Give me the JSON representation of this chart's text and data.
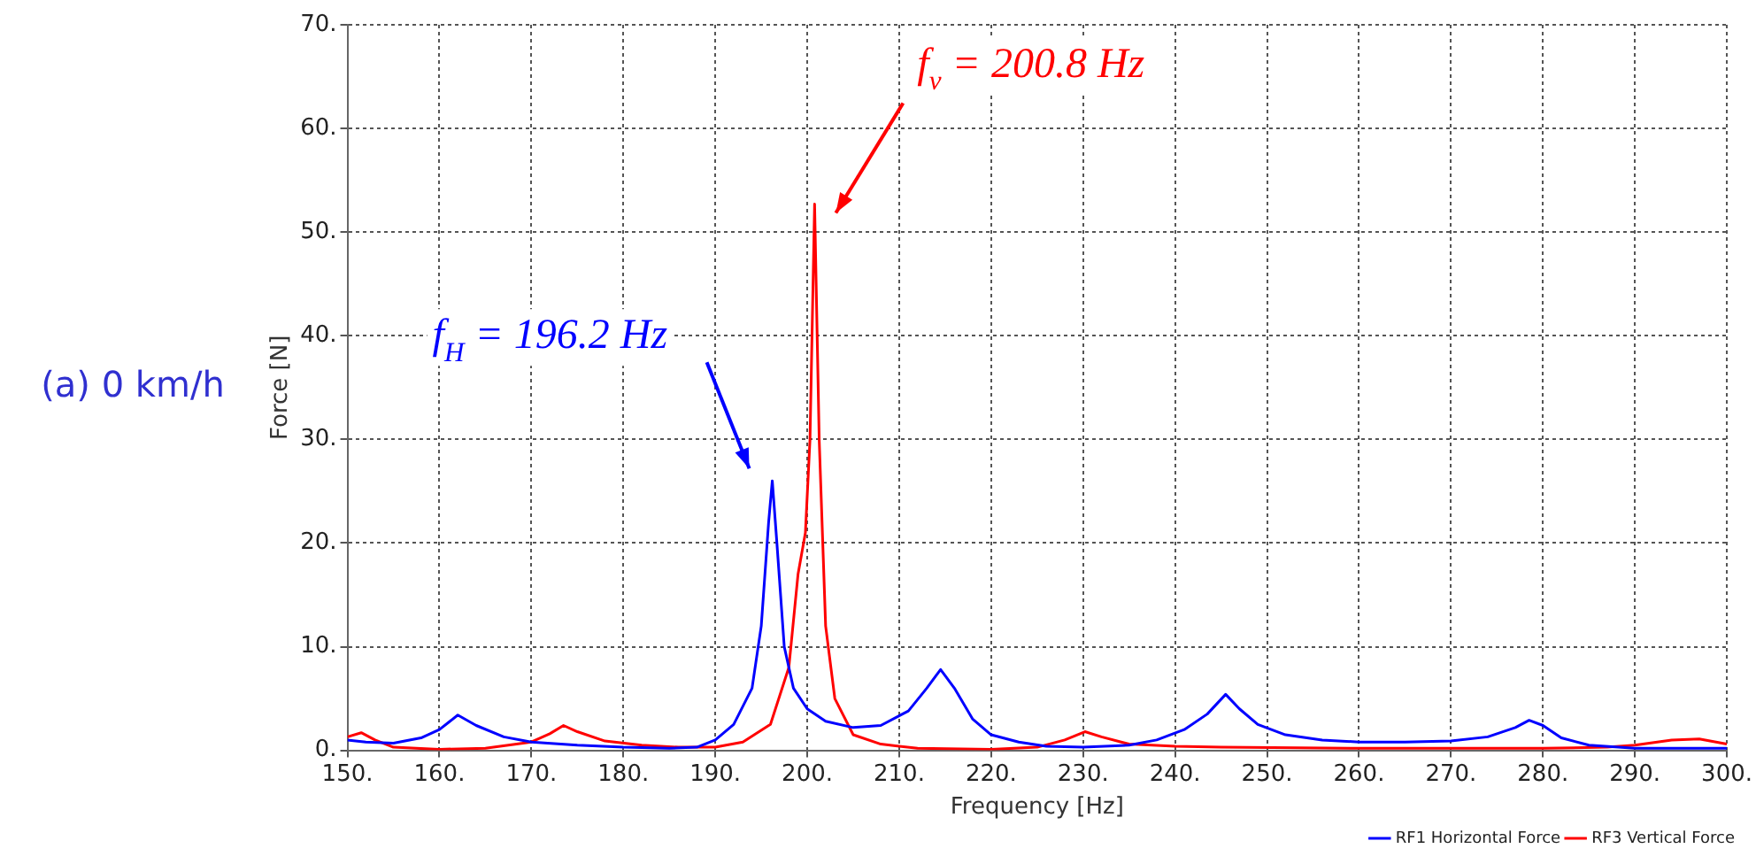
{
  "chart_data": {
    "type": "line",
    "xlabel": "Frequency [Hz]",
    "ylabel": "Force [N]",
    "xlim": [
      150,
      300
    ],
    "ylim": [
      0,
      70
    ],
    "xticks": [
      {
        "value": 150,
        "label": "150."
      },
      {
        "value": 160,
        "label": "160."
      },
      {
        "value": 170,
        "label": "170."
      },
      {
        "value": 180,
        "label": "180."
      },
      {
        "value": 190,
        "label": "190."
      },
      {
        "value": 200,
        "label": "200."
      },
      {
        "value": 210,
        "label": "210."
      },
      {
        "value": 220,
        "label": "220."
      },
      {
        "value": 230,
        "label": "230."
      },
      {
        "value": 240,
        "label": "240."
      },
      {
        "value": 250,
        "label": "250."
      },
      {
        "value": 260,
        "label": "260."
      },
      {
        "value": 270,
        "label": "270."
      },
      {
        "value": 280,
        "label": "280."
      },
      {
        "value": 290,
        "label": "290."
      },
      {
        "value": 300,
        "label": "300."
      }
    ],
    "yticks": [
      {
        "value": 0,
        "label": "0."
      },
      {
        "value": 10,
        "label": "10."
      },
      {
        "value": 20,
        "label": "20."
      },
      {
        "value": 30,
        "label": "30."
      },
      {
        "value": 40,
        "label": "40."
      },
      {
        "value": 50,
        "label": "50."
      },
      {
        "value": 60,
        "label": "60."
      },
      {
        "value": 70,
        "label": "70."
      }
    ],
    "grid": true,
    "legend": "bottom right",
    "marker": "none",
    "line_style": "solid",
    "series": [
      {
        "name": "RF1 Horizontal Force",
        "color": "#0000ff",
        "x": [
          150,
          152,
          155,
          158,
          160,
          162,
          164,
          167,
          170,
          175,
          180,
          185,
          188,
          190,
          192,
          194,
          195,
          195.8,
          196.2,
          196.7,
          197.5,
          198.5,
          200,
          202,
          205,
          208,
          211,
          213,
          214.5,
          216,
          218,
          220,
          223,
          226,
          230,
          235,
          238,
          241,
          243.5,
          245.5,
          247,
          249,
          252,
          256,
          260,
          265,
          270,
          274,
          277,
          278.5,
          280,
          282,
          285,
          290,
          295,
          300
        ],
        "values": [
          1.0,
          0.8,
          0.7,
          1.2,
          2.0,
          3.4,
          2.4,
          1.3,
          0.8,
          0.5,
          0.3,
          0.2,
          0.3,
          1.0,
          2.5,
          6,
          12,
          22,
          26,
          20,
          10,
          6,
          4,
          2.8,
          2.2,
          2.4,
          3.8,
          6,
          7.8,
          6,
          3,
          1.5,
          0.8,
          0.4,
          0.3,
          0.5,
          1,
          2,
          3.5,
          5.4,
          4,
          2.5,
          1.5,
          1.0,
          0.8,
          0.8,
          0.9,
          1.3,
          2.2,
          2.9,
          2.4,
          1.2,
          0.5,
          0.2,
          0.2,
          0.2
        ]
      },
      {
        "name": "RF3 Vertical Force",
        "color": "#ff0000",
        "x": [
          150,
          151.5,
          153,
          155,
          160,
          165,
          170,
          172,
          173.5,
          175,
          178,
          182,
          186,
          190,
          193,
          196,
          198,
          199,
          199.8,
          200.3,
          200.8,
          201.3,
          202,
          203,
          205,
          208,
          212,
          220,
          225,
          228,
          230.2,
          232,
          235,
          240,
          245,
          260,
          280,
          287,
          290,
          294,
          297,
          300
        ],
        "values": [
          1.3,
          1.7,
          1.0,
          0.3,
          0.1,
          0.2,
          0.8,
          1.6,
          2.4,
          1.8,
          0.9,
          0.5,
          0.3,
          0.3,
          0.8,
          2.5,
          8,
          17,
          21,
          30,
          52.7,
          30,
          12,
          5,
          1.5,
          0.6,
          0.2,
          0.1,
          0.3,
          1.0,
          1.8,
          1.3,
          0.6,
          0.4,
          0.3,
          0.2,
          0.2,
          0.3,
          0.5,
          1.0,
          1.1,
          0.6
        ]
      }
    ],
    "annotations": [
      "f$_{H}$ = 196.2 Hz",
      "f$_{v}$ = 200.8 Hz",
      "(a) 0 km/h"
    ]
  }
}
